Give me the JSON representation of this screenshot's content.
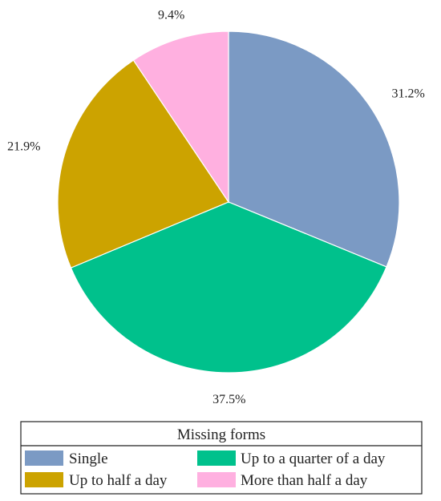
{
  "chart_data": {
    "type": "pie",
    "title": "",
    "categories": [
      "Single",
      "Up to a quarter of a day",
      "Up to half a day",
      "More than half a day"
    ],
    "values": [
      31.2,
      37.5,
      21.9,
      9.4
    ],
    "value_labels": [
      "31.2%",
      "37.5%",
      "21.9%",
      "9.4%"
    ],
    "colors": [
      "#7b9ac4",
      "#00c18c",
      "#cca300",
      "#ffb0e0"
    ],
    "start_angle_deg": 0,
    "direction": "clockwise",
    "legend": {
      "title": "Missing forms",
      "placement": "bottom",
      "columns": 2
    }
  }
}
